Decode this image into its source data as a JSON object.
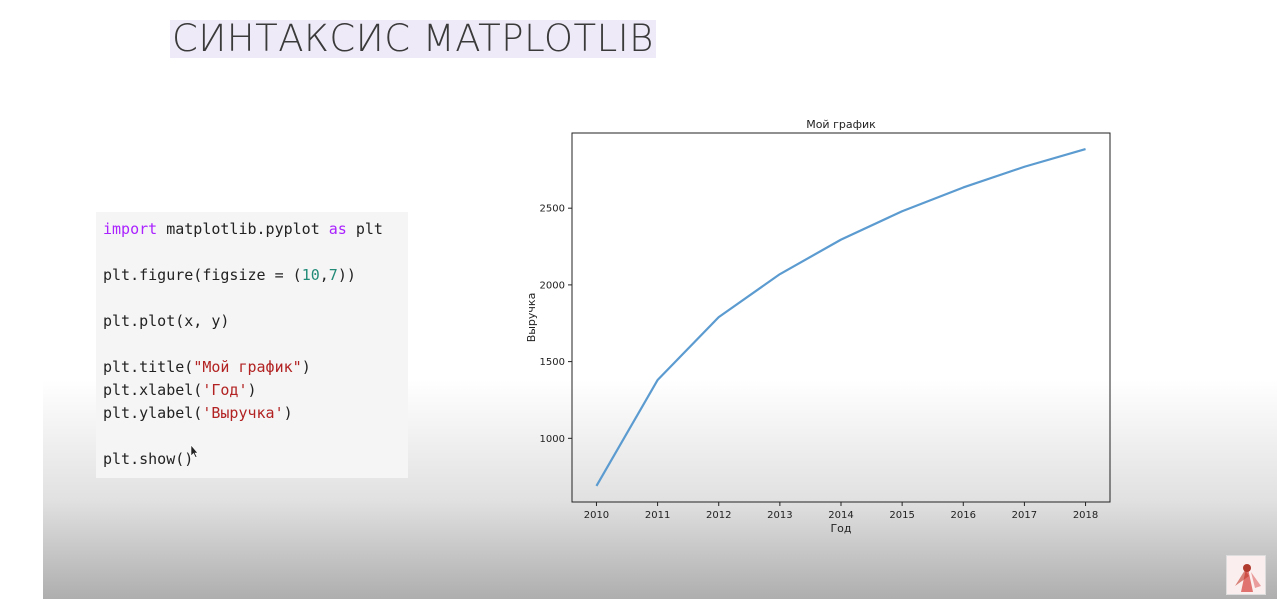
{
  "slide": {
    "title": "СИНТАКСИС MATPLOTLIB"
  },
  "code": {
    "l1_kw": "import",
    "l1_mod": " matplotlib.pyplot ",
    "l1_as": "as",
    "l1_alias": " plt",
    "l2_a": "plt.figure(figsize = (",
    "l2_n1": "10",
    "l2_c": ",",
    "l2_n2": "7",
    "l2_b": "))",
    "l3": "plt.plot(x, y)",
    "l4_a": "plt.title(",
    "l4_s": "\"Мой график\"",
    "l4_b": ")",
    "l5_a": "plt.xlabel(",
    "l5_s": "'Год'",
    "l5_b": ")",
    "l6_a": "plt.ylabel(",
    "l6_s": "'Выручка'",
    "l6_b": ")",
    "l7": "plt.show()"
  },
  "chart_data": {
    "type": "line",
    "title": "Мой график",
    "xlabel": "Год",
    "ylabel": "Выручка",
    "x": [
      2010,
      2011,
      2012,
      2013,
      2014,
      2015,
      2016,
      2017,
      2018
    ],
    "series": [
      {
        "values": [
          690,
          1380,
          1790,
          2070,
          2295,
          2480,
          2635,
          2770,
          2885
        ]
      }
    ],
    "xticks": [
      "2010",
      "2011",
      "2012",
      "2013",
      "2014",
      "2015",
      "2016",
      "2017",
      "2018"
    ],
    "yticks": [
      "1000",
      "1500",
      "2000",
      "2500"
    ],
    "ytick_values": [
      1000,
      1500,
      2000,
      2500
    ],
    "xlim": [
      2009.6,
      2018.4
    ],
    "ylim": [
      585,
      2990
    ],
    "grid": false,
    "line_color": "#5b9bd0"
  }
}
